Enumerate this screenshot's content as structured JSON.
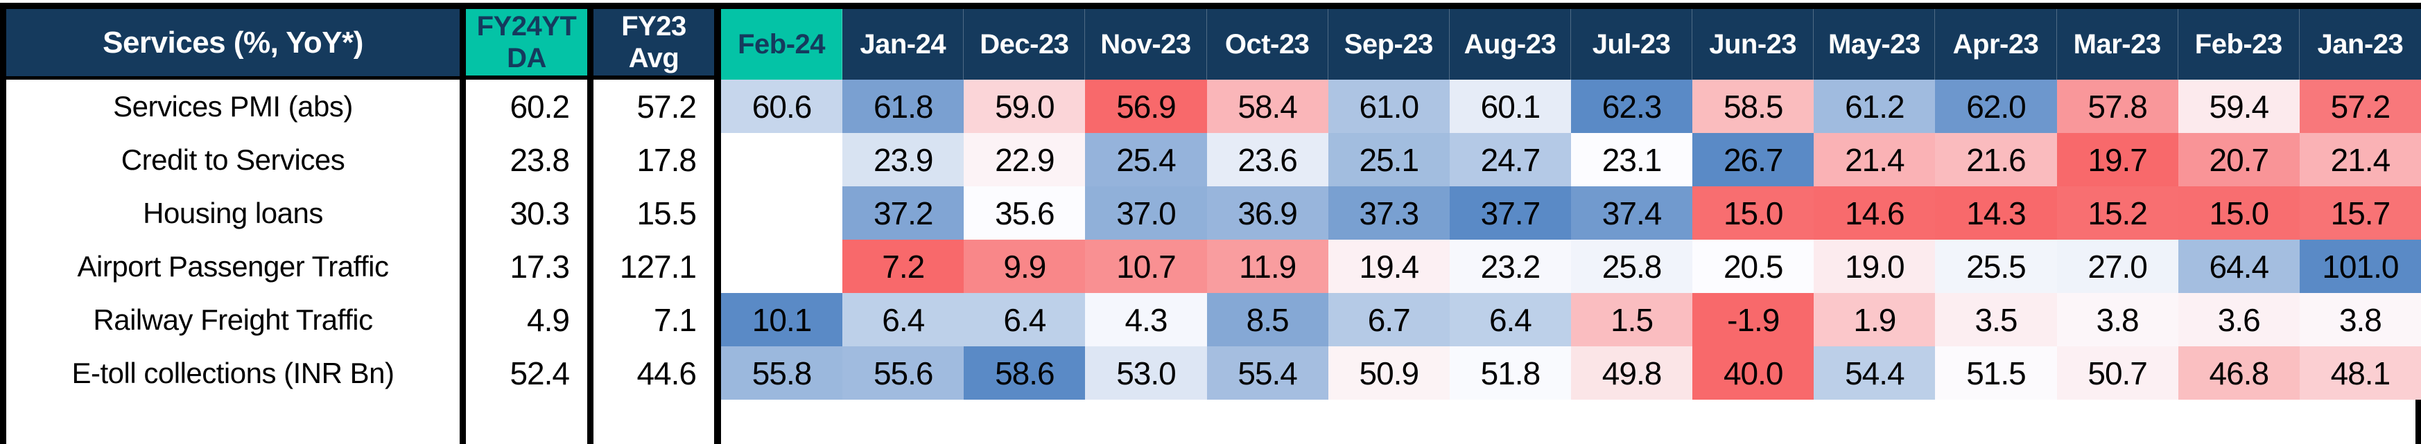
{
  "chart_data": {
    "type": "heatmap",
    "title": "Services (%, YoY*)",
    "columns": {
      "fy24ytd": {
        "line1": "FY24YT",
        "line2": "DA"
      },
      "fy23avg": {
        "line1": "FY23",
        "line2": "Avg"
      },
      "months": [
        {
          "label": "Feb-24",
          "highlight": true
        },
        {
          "label": "Jan-24"
        },
        {
          "label": "Dec-23"
        },
        {
          "label": "Nov-23"
        },
        {
          "label": "Oct-23"
        },
        {
          "label": "Sep-23"
        },
        {
          "label": "Aug-23"
        },
        {
          "label": "Jul-23"
        },
        {
          "label": "Jun-23"
        },
        {
          "label": "May-23"
        },
        {
          "label": "Apr-23"
        },
        {
          "label": "Mar-23"
        },
        {
          "label": "Feb-23"
        },
        {
          "label": "Jan-23"
        }
      ]
    },
    "rows": [
      {
        "label": "Services PMI (abs)",
        "fy24ytd": "60.2",
        "fy23avg": "57.2",
        "months": [
          "60.6",
          "61.8",
          "59.0",
          "56.9",
          "58.4",
          "61.0",
          "60.1",
          "62.3",
          "58.5",
          "61.2",
          "62.0",
          "57.8",
          "59.4",
          "57.2"
        ]
      },
      {
        "label": "Credit to Services",
        "fy24ytd": "23.8",
        "fy23avg": "17.8",
        "months": [
          null,
          "23.9",
          "22.9",
          "25.4",
          "23.6",
          "25.1",
          "24.7",
          "23.1",
          "26.7",
          "21.4",
          "21.6",
          "19.7",
          "20.7",
          "21.4"
        ]
      },
      {
        "label": "Housing loans",
        "fy24ytd": "30.3",
        "fy23avg": "15.5",
        "months": [
          null,
          "37.2",
          "35.6",
          "37.0",
          "36.9",
          "37.3",
          "37.7",
          "37.4",
          "15.0",
          "14.6",
          "14.3",
          "15.2",
          "15.0",
          "15.7"
        ]
      },
      {
        "label": "Airport Passenger Traffic",
        "fy24ytd": "17.3",
        "fy23avg": "127.1",
        "months": [
          null,
          "7.2",
          "9.9",
          "10.7",
          "11.9",
          "19.4",
          "23.2",
          "25.8",
          "20.5",
          "19.0",
          "25.5",
          "27.0",
          "64.4",
          "101.0"
        ]
      },
      {
        "label": "Railway Freight Traffic",
        "fy24ytd": "4.9",
        "fy23avg": "7.1",
        "months": [
          "10.1",
          "6.4",
          "6.4",
          "4.3",
          "8.5",
          "6.7",
          "6.4",
          "1.5",
          "-1.9",
          "1.9",
          "3.5",
          "3.8",
          "3.6",
          "3.8"
        ]
      },
      {
        "label": "E-toll collections (INR Bn)",
        "fy24ytd": "52.4",
        "fy23avg": "44.6",
        "months": [
          "55.8",
          "55.6",
          "58.6",
          "53.0",
          "55.4",
          "50.9",
          "51.8",
          "49.8",
          "40.0",
          "54.4",
          "51.5",
          "50.7",
          "46.8",
          "48.1"
        ]
      }
    ],
    "heatmap_scale": {
      "low_color": "#F8696B",
      "mid_color": "#FCFCFF",
      "high_color": "#5A8AC6",
      "note": "per-row 3-color scale: min=red, median=white, max=blue"
    },
    "layout": {
      "legend": false,
      "grid": false
    }
  },
  "colors": {
    "navy": "#153A5D",
    "teal": "#04C3A6",
    "border": "#000000",
    "text_light": "#FFFFFF",
    "text_dark": "#000000"
  }
}
